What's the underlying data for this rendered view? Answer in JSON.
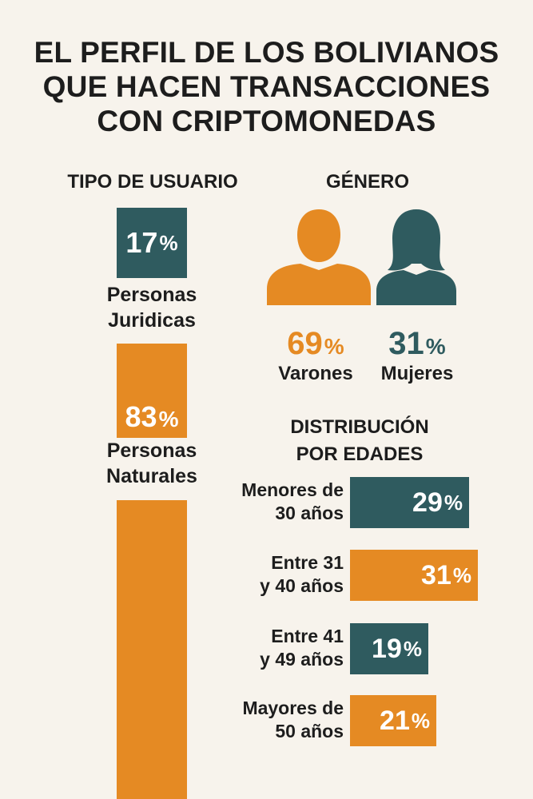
{
  "title": {
    "line1": "EL PERFIL DE LOS BOLIVIANOS",
    "line2": "QUE HACEN TRANSACCIONES",
    "line3": "CON CRIPTOMONEDAS"
  },
  "colors": {
    "orange": "#e58a23",
    "teal": "#2f5b5f",
    "background": "#f7f3ec",
    "text": "#1d1d1d"
  },
  "chart_data": [
    {
      "type": "bar",
      "title": "TIPO DE USUARIO",
      "categories": [
        "Personas Juridicas",
        "Personas Naturales"
      ],
      "values": [
        17,
        83
      ],
      "unit": "%",
      "items": [
        {
          "value": "17",
          "unit": "%",
          "label_line1": "Personas",
          "label_line2": "Juridicas",
          "color": "#2f5b5f"
        },
        {
          "value": "83",
          "unit": "%",
          "label_line1": "Personas",
          "label_line2": "Naturales",
          "color": "#e58a23"
        }
      ]
    },
    {
      "type": "pie",
      "title": "GÉNERO",
      "categories": [
        "Varones",
        "Mujeres"
      ],
      "values": [
        69,
        31
      ],
      "unit": "%",
      "items": [
        {
          "value": "69",
          "unit": "%",
          "label": "Varones",
          "icon": "male-person-icon",
          "color": "#e58a23"
        },
        {
          "value": "31",
          "unit": "%",
          "label": "Mujeres",
          "icon": "female-person-icon",
          "color": "#2f5b5f"
        }
      ]
    },
    {
      "type": "bar",
      "title_line1": "DISTRIBUCIÓN",
      "title_line2": "POR EDADES",
      "categories": [
        "Menores de 30 años",
        "Entre 31 y 40 años",
        "Entre 41 y 49 años",
        "Mayores de 50 años"
      ],
      "values": [
        29,
        31,
        19,
        21
      ],
      "unit": "%",
      "items": [
        {
          "value": "29",
          "unit": "%",
          "label_line1": "Menores de",
          "label_line2": "30 años",
          "color": "#2f5b5f"
        },
        {
          "value": "31",
          "unit": "%",
          "label_line1": "Entre 31",
          "label_line2": "y 40 años",
          "color": "#e58a23"
        },
        {
          "value": "19",
          "unit": "%",
          "label_line1": "Entre 41",
          "label_line2": "y 49 años",
          "color": "#2f5b5f"
        },
        {
          "value": "21",
          "unit": "%",
          "label_line1": "Mayores de",
          "label_line2": "50 años",
          "color": "#e58a23"
        }
      ]
    }
  ]
}
